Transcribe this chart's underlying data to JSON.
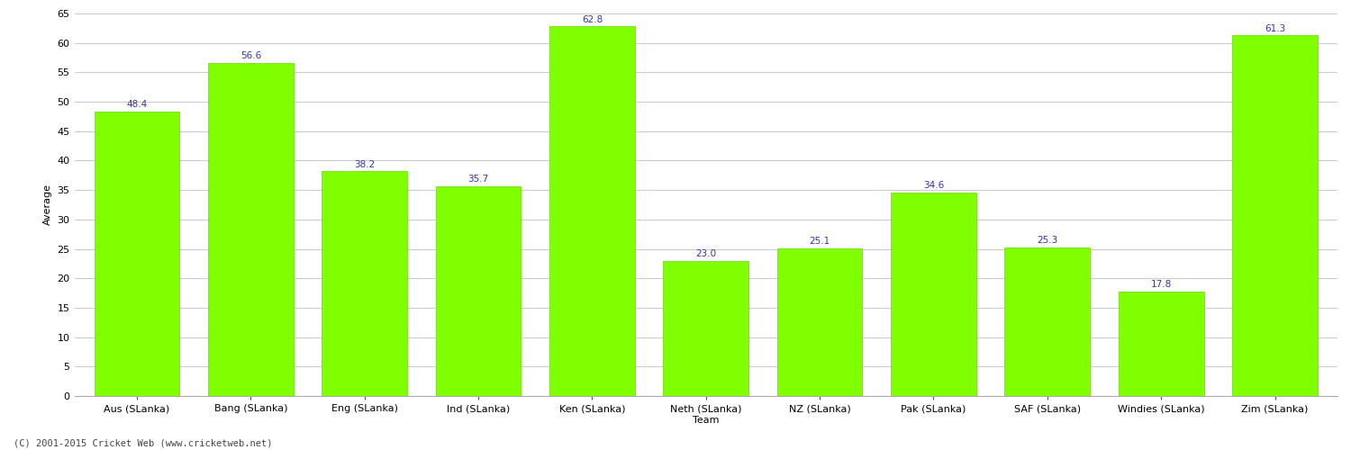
{
  "categories": [
    "Aus (SLanka)",
    "Bang (SLanka)",
    "Eng (SLanka)",
    "Ind (SLanka)",
    "Ken (SLanka)",
    "Neth (SLanka)",
    "NZ (SLanka)",
    "Pak (SLanka)",
    "SAF (SLanka)",
    "Windies (SLanka)",
    "Zim (SLanka)"
  ],
  "values": [
    48.4,
    56.6,
    38.2,
    35.7,
    62.8,
    23.0,
    25.1,
    34.6,
    25.3,
    17.8,
    61.3
  ],
  "bar_color": "#7FFF00",
  "bar_edge_color": "#66DD00",
  "value_label_color": "#3333AA",
  "xlabel": "Team",
  "ylabel": "Average",
  "ylim": [
    0,
    65
  ],
  "yticks": [
    0,
    5,
    10,
    15,
    20,
    25,
    30,
    35,
    40,
    45,
    50,
    55,
    60,
    65
  ],
  "background_color": "#FFFFFF",
  "grid_color": "#CCCCCC",
  "footer_text": "(C) 2001-2015 Cricket Web (www.cricketweb.net)",
  "axis_label_fontsize": 8,
  "tick_label_fontsize": 8,
  "value_label_fontsize": 7.5,
  "footer_fontsize": 7.5,
  "bar_width": 0.75
}
